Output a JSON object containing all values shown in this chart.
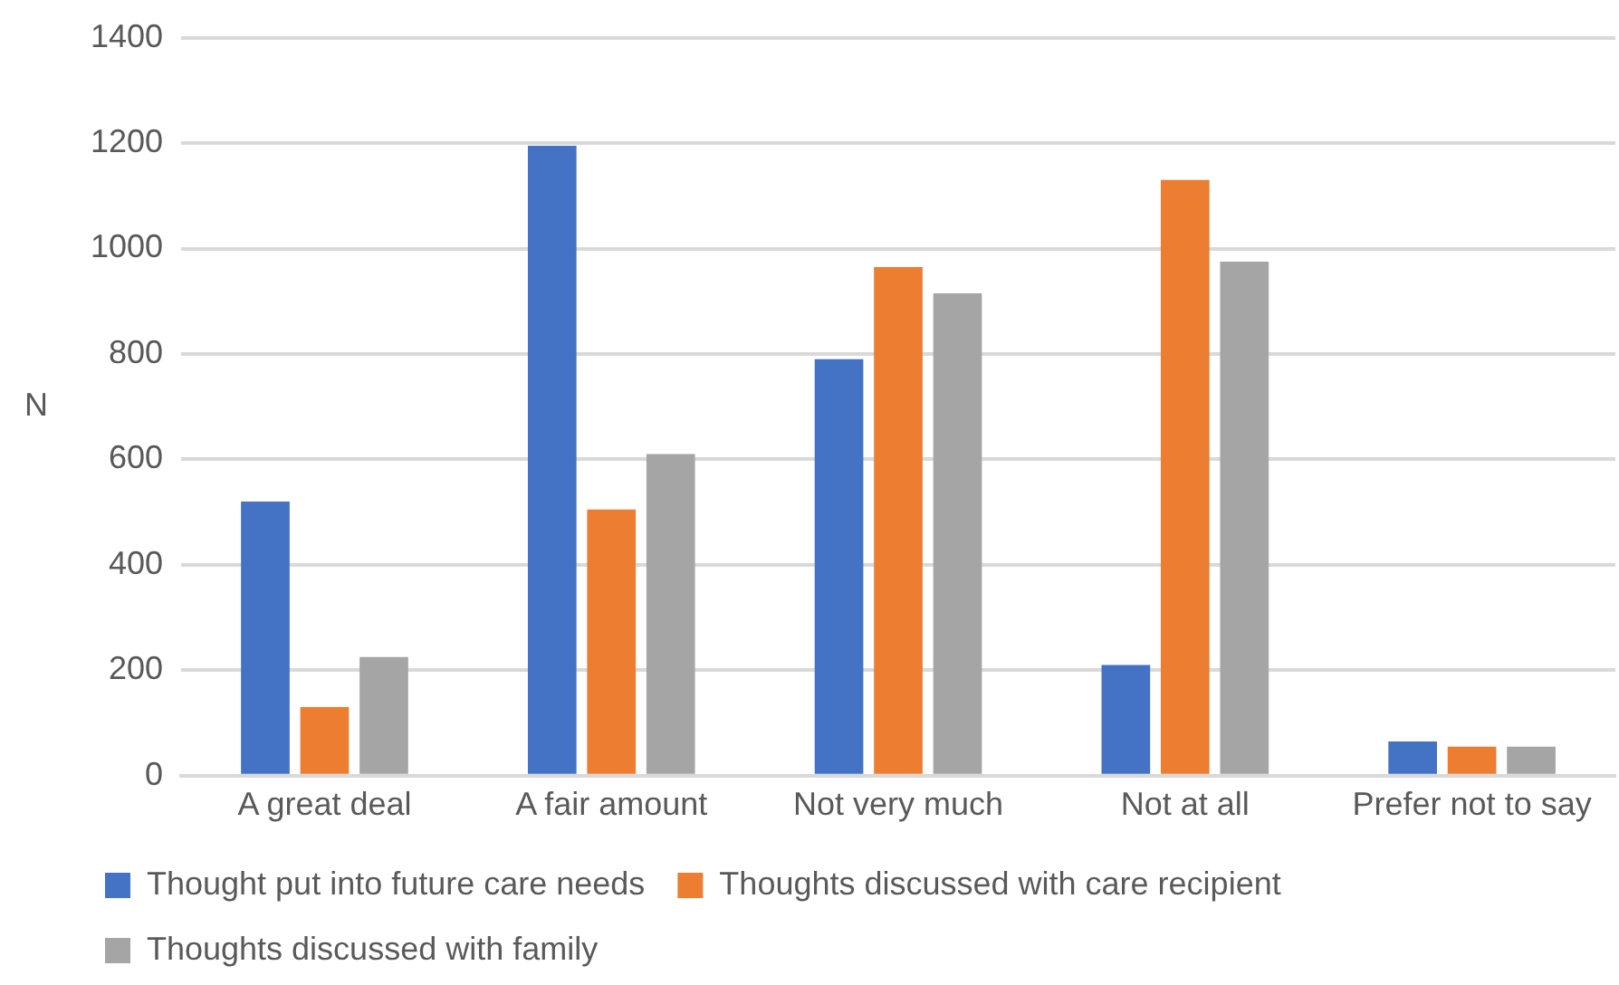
{
  "chart_data": {
    "type": "bar",
    "ylabel": "N",
    "categories": [
      "A great deal",
      "A fair amount",
      "Not very much",
      "Not at all",
      "Prefer not to say"
    ],
    "series": [
      {
        "name": "Thought put into future care needs",
        "color": "#4472c4",
        "values": [
          520,
          1195,
          790,
          210,
          65
        ]
      },
      {
        "name": "Thoughts discussed with care recipient",
        "color": "#ed7d31",
        "values": [
          130,
          505,
          965,
          1130,
          55
        ]
      },
      {
        "name": "Thoughts discussed with family",
        "color": "#a5a5a5",
        "values": [
          225,
          610,
          915,
          975,
          55
        ]
      }
    ],
    "ylim": [
      0,
      1400
    ],
    "yticks": [
      0,
      200,
      400,
      600,
      800,
      1000,
      1200,
      1400
    ],
    "grid": "y",
    "legend": "bottom"
  }
}
